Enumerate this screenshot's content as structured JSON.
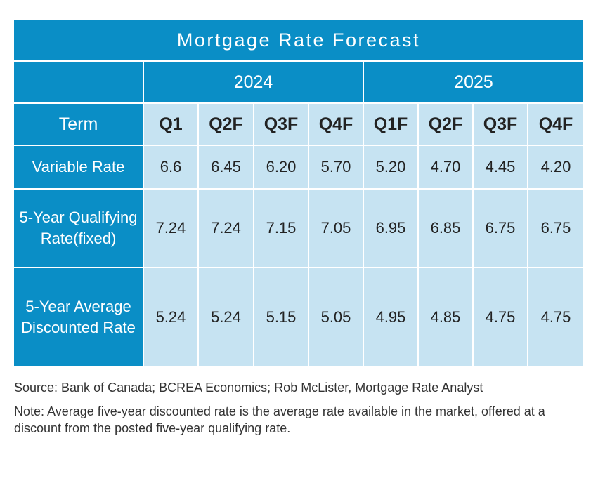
{
  "chart_data": {
    "type": "table",
    "title": "Mortgage Rate Forecast",
    "years": [
      "2024",
      "2025"
    ],
    "header_label": "Term",
    "columns": [
      "Q1",
      "Q2F",
      "Q3F",
      "Q4F",
      "Q1F",
      "Q2F",
      "Q3F",
      "Q4F"
    ],
    "rows": [
      {
        "label": "Variable Rate",
        "values": [
          "6.6",
          "6.45",
          "6.20",
          "5.70",
          "5.20",
          "4.70",
          "4.45",
          "4.20"
        ]
      },
      {
        "label": "5-Year Qualifying Rate(fixed)",
        "values": [
          "7.24",
          "7.24",
          "7.15",
          "7.05",
          "6.95",
          "6.85",
          "6.75",
          "6.75"
        ]
      },
      {
        "label": "5-Year Average Discounted Rate",
        "values": [
          "5.24",
          "5.24",
          "5.15",
          "5.05",
          "4.95",
          "4.85",
          "4.75",
          "4.75"
        ]
      }
    ]
  },
  "source": "Source: Bank of Canada; BCREA Economics; Rob McLister, Mortgage Rate Analyst",
  "note": "Note: Average five-year discounted rate is the average rate available in the market, offered at a discount from the posted five-year qualifying rate.",
  "colors": {
    "header": "#0a8ec6",
    "cell": "#c6e3f2"
  }
}
